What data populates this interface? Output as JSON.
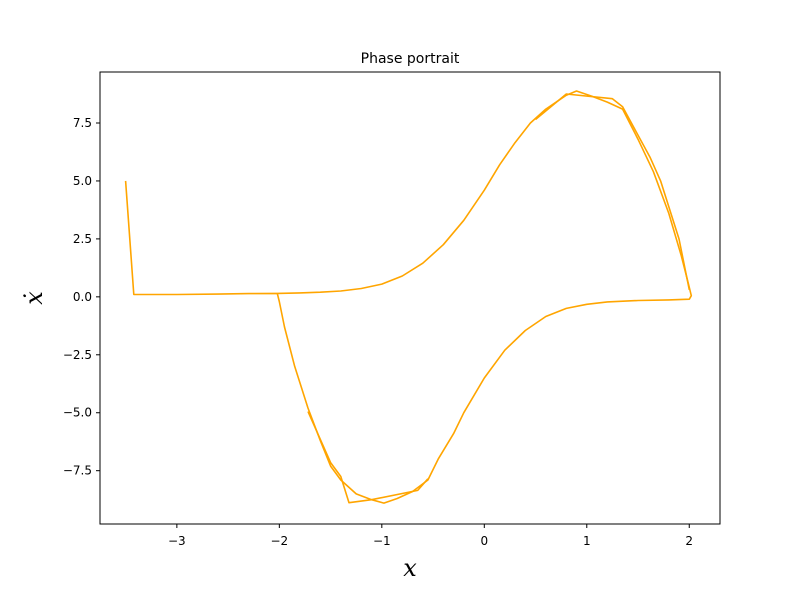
{
  "chart_data": {
    "type": "line",
    "title": "Phase portrait",
    "xlabel": "x",
    "ylabel": "ẋ",
    "xlim": [
      -3.75,
      2.3
    ],
    "ylim": [
      -9.8,
      9.7
    ],
    "xticks": [
      -3,
      -2,
      -1,
      0,
      1,
      2
    ],
    "xtick_labels": [
      "−3",
      "−2",
      "−1",
      "0",
      "1",
      "2"
    ],
    "yticks": [
      -7.5,
      -5.0,
      -2.5,
      0.0,
      2.5,
      5.0,
      7.5
    ],
    "ytick_labels": [
      "−7.5",
      "−5.0",
      "−2.5",
      "0.0",
      "2.5",
      "5.0",
      "7.5"
    ],
    "grid": false,
    "series": [
      {
        "color": "#ffa500",
        "points": [
          [
            -3.5,
            5.0
          ],
          [
            -3.42,
            0.1
          ],
          [
            -3.0,
            0.1
          ],
          [
            -2.6,
            0.12
          ],
          [
            -2.3,
            0.14
          ],
          [
            -2.02,
            0.15
          ],
          [
            -1.8,
            0.17
          ],
          [
            -1.6,
            0.2
          ],
          [
            -1.4,
            0.25
          ],
          [
            -1.2,
            0.36
          ],
          [
            -1.0,
            0.55
          ],
          [
            -0.8,
            0.9
          ],
          [
            -0.6,
            1.45
          ],
          [
            -0.4,
            2.25
          ],
          [
            -0.2,
            3.3
          ],
          [
            0.0,
            4.6
          ],
          [
            0.15,
            5.7
          ],
          [
            0.3,
            6.65
          ],
          [
            0.45,
            7.5
          ],
          [
            0.6,
            8.1
          ],
          [
            0.8,
            8.7
          ],
          [
            0.9,
            8.88
          ],
          [
            1.05,
            8.65
          ],
          [
            1.2,
            8.4
          ],
          [
            1.35,
            8.1
          ],
          [
            1.5,
            6.8
          ],
          [
            1.65,
            5.4
          ],
          [
            1.8,
            3.6
          ],
          [
            1.92,
            1.8
          ],
          [
            1.99,
            0.6
          ],
          [
            2.02,
            0.05
          ],
          [
            2.0,
            -0.1
          ],
          [
            1.8,
            -0.13
          ],
          [
            1.5,
            -0.16
          ],
          [
            1.2,
            -0.22
          ],
          [
            1.0,
            -0.32
          ],
          [
            0.8,
            -0.5
          ],
          [
            0.6,
            -0.85
          ],
          [
            0.4,
            -1.45
          ],
          [
            0.2,
            -2.3
          ],
          [
            0.0,
            -3.5
          ],
          [
            -0.2,
            -5.0
          ],
          [
            -0.3,
            -5.9
          ],
          [
            -0.45,
            -7.0
          ],
          [
            -0.55,
            -7.9
          ],
          [
            -0.7,
            -8.4
          ],
          [
            -0.85,
            -8.7
          ],
          [
            -0.98,
            -8.9
          ],
          [
            -1.1,
            -8.75
          ],
          [
            -1.25,
            -8.5
          ],
          [
            -1.4,
            -7.9
          ],
          [
            -1.5,
            -7.3
          ],
          [
            -1.6,
            -6.2
          ],
          [
            -1.72,
            -4.8
          ],
          [
            -1.85,
            -3.0
          ],
          [
            -1.95,
            -1.3
          ],
          [
            -2.0,
            -0.2
          ],
          [
            -2.02,
            0.15
          ]
        ]
      },
      {
        "color": "#ffa500",
        "points": [
          [
            0.5,
            7.65
          ],
          [
            0.8,
            8.75
          ],
          [
            1.25,
            8.55
          ],
          [
            1.35,
            8.2
          ],
          [
            1.62,
            6.0
          ],
          [
            1.72,
            5.0
          ],
          [
            1.9,
            2.5
          ],
          [
            2.0,
            0.3
          ]
        ]
      },
      {
        "color": "#ffa500",
        "points": [
          [
            -0.55,
            -7.85
          ],
          [
            -0.65,
            -8.35
          ],
          [
            -1.1,
            -8.75
          ],
          [
            -1.32,
            -8.88
          ],
          [
            -1.4,
            -7.75
          ],
          [
            -1.5,
            -7.15
          ],
          [
            -1.72,
            -4.95
          ]
        ]
      }
    ]
  }
}
